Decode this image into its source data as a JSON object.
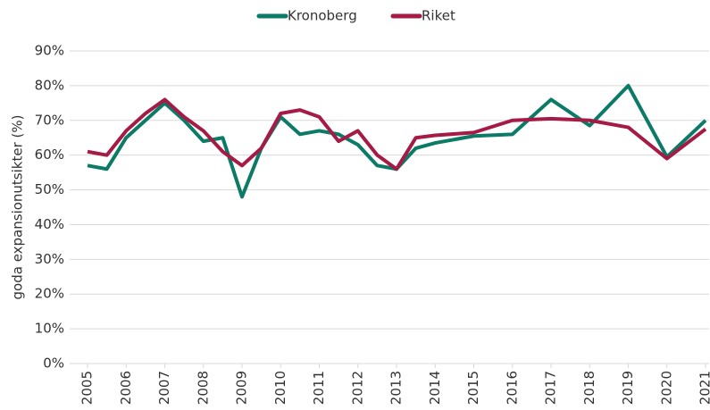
{
  "chart_data": {
    "type": "line",
    "y_label": "goda expansionutsikter (%)",
    "x": [
      2005,
      2005.5,
      2006,
      2006.5,
      2007,
      2007.5,
      2008,
      2008.5,
      2009,
      2009.5,
      2010,
      2010.5,
      2011,
      2011.5,
      2012,
      2012.5,
      2013,
      2013.5,
      2014,
      2015,
      2016,
      2017,
      2018,
      2019,
      2020,
      2021
    ],
    "series": [
      {
        "name": "Kronoberg",
        "color": "#0b7a66",
        "values": [
          57,
          56,
          65,
          70,
          75,
          70,
          64,
          65,
          48,
          62,
          71,
          66,
          67,
          66,
          63,
          57,
          56,
          62,
          63.5,
          65.5,
          66,
          76,
          68.5,
          80,
          59.5,
          70
        ]
      },
      {
        "name": "Riket",
        "color": "#a61b46",
        "values": [
          61,
          60,
          67,
          72,
          76,
          71,
          67,
          61,
          57,
          62,
          72,
          73,
          71,
          64,
          67,
          60,
          56,
          65,
          65.7,
          66.5,
          70,
          70.5,
          70,
          68,
          59,
          67.5
        ]
      }
    ],
    "xlim": [
      2005,
      2021
    ],
    "xticks": [
      2005,
      2006,
      2007,
      2008,
      2009,
      2010,
      2011,
      2012,
      2013,
      2014,
      2015,
      2016,
      2017,
      2018,
      2019,
      2020,
      2021
    ],
    "ylim": [
      0,
      90
    ],
    "yticks": [
      {
        "value": 0,
        "label": "0%"
      },
      {
        "value": 10,
        "label": "10%"
      },
      {
        "value": 20,
        "label": "20%"
      },
      {
        "value": 30,
        "label": "30%"
      },
      {
        "value": 40,
        "label": "40%"
      },
      {
        "value": 50,
        "label": "50%"
      },
      {
        "value": 60,
        "label": "60%"
      },
      {
        "value": 70,
        "label": "70%"
      },
      {
        "value": 80,
        "label": "80%"
      },
      {
        "value": 90,
        "label": "90%"
      }
    ],
    "grid": true,
    "legend": "top"
  }
}
